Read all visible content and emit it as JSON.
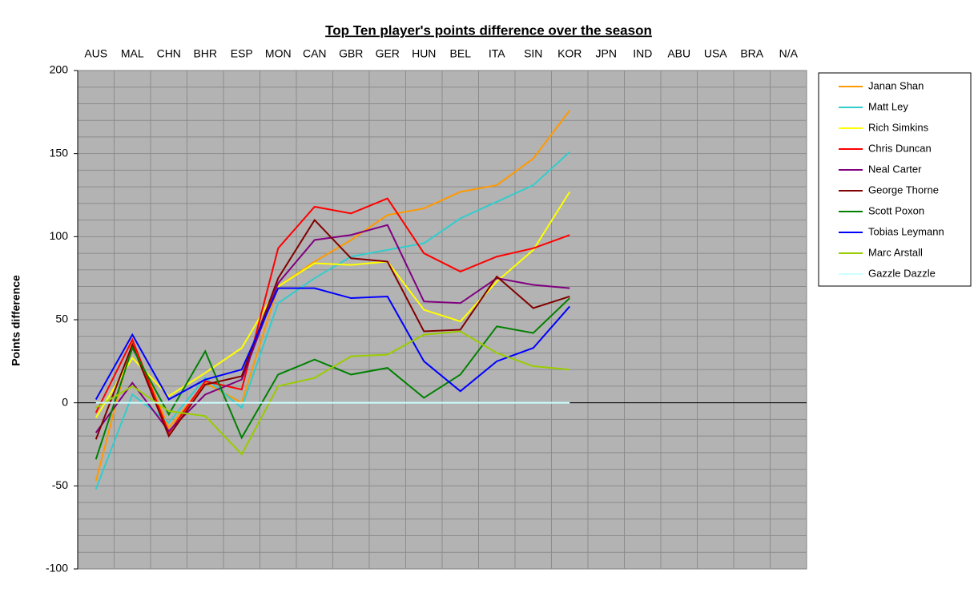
{
  "chart_data": {
    "type": "line",
    "title": "Top Ten player's points difference over the season",
    "y_label": "Points difference",
    "categories": [
      "AUS",
      "MAL",
      "CHN",
      "BHR",
      "ESP",
      "MON",
      "CAN",
      "GBR",
      "GER",
      "HUN",
      "BEL",
      "ITA",
      "SIN",
      "KOR",
      "JPN",
      "IND",
      "ABU",
      "USA",
      "BRA",
      "N/A"
    ],
    "ylim": [
      -100,
      200
    ],
    "yticks": [
      -100,
      -50,
      0,
      50,
      100,
      150,
      200
    ],
    "yminor_step": 10,
    "grid": true,
    "legend": "right",
    "series": [
      {
        "name": "Janan Shan",
        "color": "#ff9900",
        "values": [
          -47,
          37,
          -15,
          12,
          0,
          70,
          85,
          98,
          113,
          117,
          127,
          131,
          147,
          176,
          null,
          null,
          null,
          null,
          null,
          null
        ]
      },
      {
        "name": "Matt Ley",
        "color": "#33cccc",
        "values": [
          -52,
          5,
          -12,
          15,
          -3,
          60,
          75,
          88,
          92,
          96,
          111,
          121,
          131,
          151,
          null,
          null,
          null,
          null,
          null,
          null
        ]
      },
      {
        "name": "Rich Simkins",
        "color": "#ffff00",
        "values": [
          -9,
          27,
          4,
          18,
          33,
          70,
          84,
          83,
          85,
          56,
          49,
          73,
          92,
          127,
          null,
          null,
          null,
          null,
          null,
          null
        ]
      },
      {
        "name": "Chris Duncan",
        "color": "#ff0000",
        "values": [
          -6,
          38,
          -18,
          13,
          8,
          93,
          118,
          114,
          123,
          90,
          79,
          88,
          93,
          101,
          null,
          null,
          null,
          null,
          null,
          null
        ]
      },
      {
        "name": "Neal Carter",
        "color": "#800080",
        "values": [
          -18,
          12,
          -17,
          5,
          14,
          72,
          98,
          101,
          107,
          61,
          60,
          75,
          71,
          69,
          null,
          null,
          null,
          null,
          null,
          null
        ]
      },
      {
        "name": "George Thorne",
        "color": "#800000",
        "values": [
          -22,
          35,
          -20,
          11,
          16,
          75,
          110,
          87,
          85,
          43,
          44,
          76,
          57,
          64,
          null,
          null,
          null,
          null,
          null,
          null
        ]
      },
      {
        "name": "Scott Poxon",
        "color": "#008000",
        "values": [
          -34,
          33,
          -7,
          31,
          -21,
          17,
          26,
          17,
          21,
          3,
          17,
          46,
          42,
          63,
          null,
          null,
          null,
          null,
          null,
          null
        ]
      },
      {
        "name": "Tobias Leymann",
        "color": "#0000ff",
        "values": [
          2,
          41,
          2,
          14,
          20,
          69,
          69,
          63,
          64,
          25,
          7,
          25,
          33,
          58,
          null,
          null,
          null,
          null,
          null,
          null
        ]
      },
      {
        "name": "Marc Arstall",
        "color": "#99cc00",
        "values": [
          -3,
          10,
          -5,
          -8,
          -31,
          10,
          15,
          28,
          29,
          41,
          43,
          30,
          22,
          20,
          null,
          null,
          null,
          null,
          null,
          null
        ]
      },
      {
        "name": "Gazzle Dazzle",
        "color": "#ccffff",
        "values": [
          0,
          0,
          0,
          0,
          0,
          0,
          0,
          0,
          0,
          0,
          0,
          0,
          0,
          0,
          null,
          null,
          null,
          null,
          null,
          null
        ]
      }
    ]
  }
}
